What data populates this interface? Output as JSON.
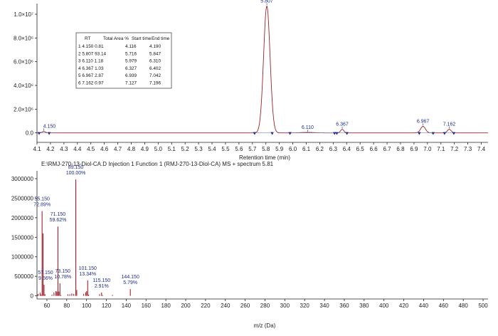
{
  "chart_data": [
    {
      "type": "line",
      "colors": {
        "line": "#a0202c",
        "baseline": "#7a88bb",
        "marker": "#1f2c8a",
        "label": "#1f2c8a"
      },
      "xlabel": "Retention time (min)",
      "ylabel": "",
      "xlim": [
        4.1,
        7.45
      ],
      "ylim": [
        -0.08,
        1.09
      ],
      "x_ticks": [
        "4.1",
        "4.2",
        "4.3",
        "4.4",
        "4.5",
        "4.6",
        "4.7",
        "4.8",
        "4.9",
        "5.0",
        "5.1",
        "5.2",
        "5.3",
        "5.4",
        "5.5",
        "5.6",
        "5.7",
        "5.8",
        "5.9",
        "6.0",
        "6.1",
        "6.2",
        "6.3",
        "6.4",
        "6.5",
        "6.6",
        "6.7",
        "6.8",
        "6.9",
        "7.0",
        "7.1",
        "7.2",
        "7.3",
        "7.4"
      ],
      "y_ticks": [
        {
          "label": "0.0",
          "value": 0
        },
        {
          "label": "2.0×10⁶",
          "value": 0.2
        },
        {
          "label": "4.0×10⁶",
          "value": 0.4
        },
        {
          "label": "6.0×10⁶",
          "value": 0.6
        },
        {
          "label": "8.0×10⁶",
          "value": 0.8
        },
        {
          "label": "1.0×10⁷",
          "value": 1.0
        }
      ],
      "y_unit": "×10⁷",
      "peaks": [
        {
          "label": "4.150",
          "rt": 4.15,
          "height": 0.012,
          "width": 0.012,
          "start": 4.116,
          "end": 4.19
        },
        {
          "label": "5.807",
          "rt": 5.807,
          "height": 1.07,
          "width": 0.024,
          "start": 5.716,
          "end": 5.847
        },
        {
          "label": "6.110",
          "rt": 6.11,
          "height": 0.004,
          "width": 0.05,
          "start": 5.979,
          "end": 6.31
        },
        {
          "label": "6.367",
          "rt": 6.367,
          "height": 0.03,
          "width": 0.012,
          "start": 6.327,
          "end": 6.402
        },
        {
          "label": "6.967",
          "rt": 6.967,
          "height": 0.055,
          "width": 0.018,
          "start": 6.939,
          "end": 7.042
        },
        {
          "label": "7.162",
          "rt": 7.162,
          "height": 0.03,
          "width": 0.014,
          "start": 7.127,
          "end": 7.196
        }
      ],
      "table": {
        "headers": [
          "RT",
          "Total Area %",
          "Start time",
          "End time"
        ],
        "rows": [
          [
            "1 4.150 0.81",
            "4.116",
            "4.190"
          ],
          [
            "2 5.807 93.14",
            "5.716",
            "5.847"
          ],
          [
            "3 6.110 1.18",
            "5.979",
            "6.310"
          ],
          [
            "4 6.367 1.03",
            "6.327",
            "6.402"
          ],
          [
            "5 6.967 2.87",
            "6.939",
            "7.042"
          ],
          [
            "6 7.162 0.97",
            "7.127",
            "7.196"
          ]
        ]
      }
    },
    {
      "type": "bar",
      "title": "E:\\RMJ-270-13-Diol-CA.D Injection 1 Function 1 (RMJ-270-13-Diol-CA) MS + spectrum 5.81",
      "xlabel": "m/z (Da)",
      "ylabel": "",
      "xlim": [
        50,
        505
      ],
      "ylim": [
        -80000,
        3200000
      ],
      "x_ticks": [
        60,
        80,
        100,
        120,
        140,
        160,
        180,
        200,
        220,
        240,
        260,
        280,
        300,
        320,
        340,
        360,
        380,
        400,
        420,
        440,
        460,
        480,
        500
      ],
      "y_ticks": [
        0,
        500000,
        1000000,
        1500000,
        2000000,
        2500000,
        3000000
      ],
      "color": "#a0202c",
      "bars": [
        {
          "x": 50.5,
          "y": 20000
        },
        {
          "x": 51.1,
          "y": 50000
        },
        {
          "x": 53.1,
          "y": 80000
        },
        {
          "x": 54.1,
          "y": 35000
        },
        {
          "x": 55.15,
          "y": 2170000
        },
        {
          "x": 56.1,
          "y": 1600000
        },
        {
          "x": 57.15,
          "y": 285000
        },
        {
          "x": 58.1,
          "y": 40000
        },
        {
          "x": 65.1,
          "y": 30000
        },
        {
          "x": 67.1,
          "y": 90000
        },
        {
          "x": 69.1,
          "y": 120000
        },
        {
          "x": 70.1,
          "y": 110000
        },
        {
          "x": 71.15,
          "y": 1775000
        },
        {
          "x": 72.1,
          "y": 110000
        },
        {
          "x": 73.15,
          "y": 321000
        },
        {
          "x": 74.1,
          "y": 20000
        },
        {
          "x": 81.1,
          "y": 40000
        },
        {
          "x": 83.1,
          "y": 40000
        },
        {
          "x": 85.1,
          "y": 60000
        },
        {
          "x": 87.1,
          "y": 50000
        },
        {
          "x": 89.15,
          "y": 2980000
        },
        {
          "x": 90.1,
          "y": 150000
        },
        {
          "x": 97.1,
          "y": 50000
        },
        {
          "x": 99.1,
          "y": 90000
        },
        {
          "x": 100.1,
          "y": 120000
        },
        {
          "x": 101.15,
          "y": 397000
        },
        {
          "x": 102.1,
          "y": 30000
        },
        {
          "x": 113.1,
          "y": 40000
        },
        {
          "x": 115.15,
          "y": 87000
        },
        {
          "x": 116.1,
          "y": 20000
        },
        {
          "x": 126.1,
          "y": 25000
        },
        {
          "x": 144.15,
          "y": 172000
        }
      ],
      "annotations": [
        {
          "x": 55.15,
          "y": 2170000,
          "text": [
            "55.150",
            "72.89%"
          ]
        },
        {
          "x": 89.15,
          "y": 2980000,
          "text": [
            "89.150",
            "100.00%"
          ]
        },
        {
          "x": 71.15,
          "y": 1775000,
          "text": [
            "71.150",
            "59.62%"
          ]
        },
        {
          "x": 57.15,
          "y": 285000,
          "text": [
            "57.150",
            "9.56%"
          ]
        },
        {
          "x": 73.15,
          "y": 321000,
          "text": [
            "73.150",
            "10.78%"
          ]
        },
        {
          "x": 101.15,
          "y": 397000,
          "text": [
            "101.150",
            "13.34%"
          ]
        },
        {
          "x": 115.15,
          "y": 87000,
          "text": [
            "115.150",
            "2.91%"
          ]
        },
        {
          "x": 144.15,
          "y": 172000,
          "text": [
            "144.150",
            "5.79%"
          ]
        }
      ]
    }
  ]
}
